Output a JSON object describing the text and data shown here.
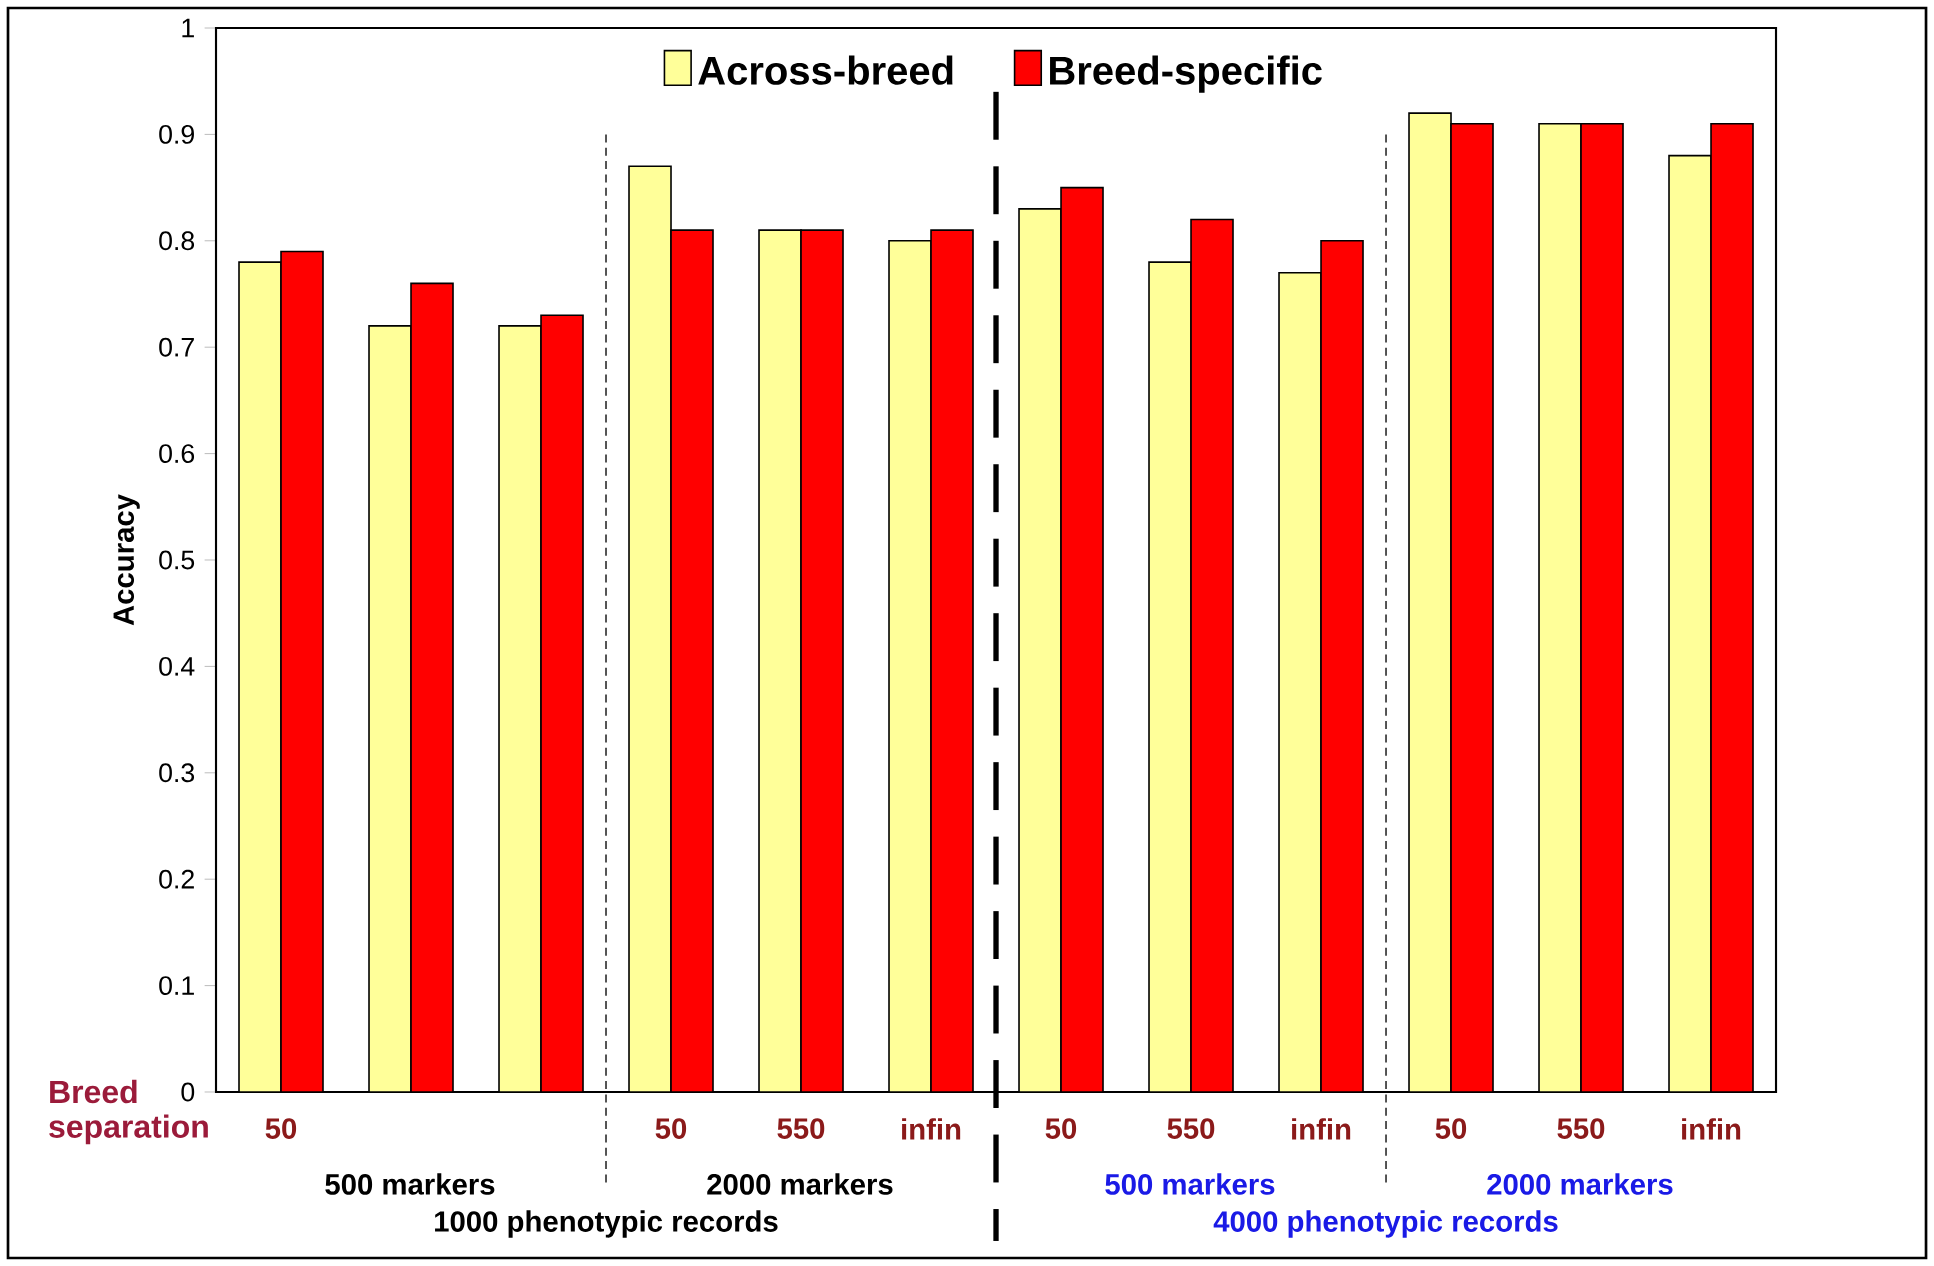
{
  "chart_data": {
    "type": "bar",
    "ylabel": "Accuracy",
    "categories": [
      "50",
      null,
      null,
      "50",
      "550",
      "infin",
      "50",
      "550",
      "infin",
      "50",
      "550",
      "infin"
    ],
    "series": [
      {
        "name": "Across-breed",
        "color": "#ffff99",
        "values": [
          0.78,
          0.72,
          0.72,
          0.87,
          0.81,
          0.8,
          0.83,
          0.78,
          0.77,
          0.92,
          0.91,
          0.88
        ]
      },
      {
        "name": "Breed-specific",
        "color": "#ff0000",
        "values": [
          0.79,
          0.76,
          0.73,
          0.81,
          0.81,
          0.81,
          0.85,
          0.82,
          0.8,
          0.91,
          0.91,
          0.91
        ]
      }
    ],
    "ylim": [
      0,
      1
    ],
    "yticks": [
      0,
      0.1,
      0.2,
      0.3,
      0.4,
      0.5,
      0.6,
      0.7,
      0.8,
      0.9,
      1
    ],
    "legend": "top",
    "annotations": [
      "Breed separation",
      "500 markers",
      "2000 markers",
      "500 markers",
      "2000 markers",
      "1000 phenotypic records",
      "4000 phenotypic records"
    ]
  }
}
